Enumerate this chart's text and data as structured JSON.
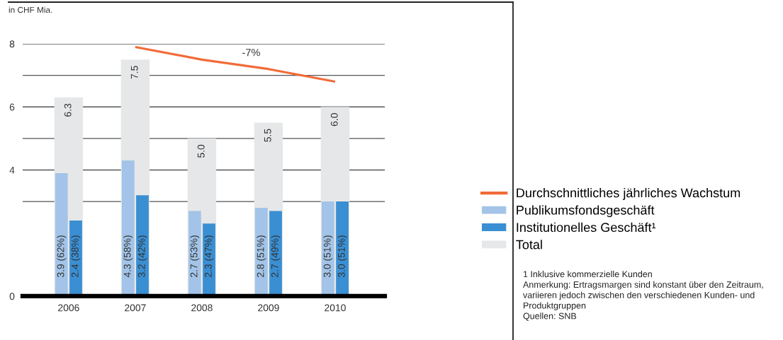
{
  "chart_data": {
    "type": "bar",
    "ylabel": "in CHF Mia.",
    "categories": [
      "2006",
      "2007",
      "2008",
      "2009",
      "2010"
    ],
    "series": [
      {
        "name": "Durchschnittliches jährliches Wachstum",
        "type": "line",
        "color": "#f26b38",
        "values": [
          null,
          7.9,
          7.5,
          7.2,
          6.8
        ]
      },
      {
        "name": "Publikumsfondsgeschäft",
        "color": "#a3c4e8",
        "values": [
          3.9,
          4.3,
          2.7,
          2.8,
          3.0
        ],
        "value_labels": [
          "3.9 (62%)",
          "4.3 (58%)",
          "2.7 (53%)",
          "2.8 (51%)",
          "3.0 (51%)"
        ]
      },
      {
        "name": "Institutionelles Geschäft¹",
        "color": "#3a8fd3",
        "values": [
          2.4,
          3.2,
          2.3,
          2.7,
          3.0
        ],
        "value_labels": [
          "2.4 (38%)",
          "3.2 (42%)",
          "2.3 (47%)",
          "2.7 (49%)",
          "3.0 (51%)"
        ]
      },
      {
        "name": "Total",
        "color": "#e6e7e8",
        "values": [
          6.3,
          7.5,
          5.0,
          5.5,
          6.0
        ],
        "value_labels": [
          "6.3",
          "7.5",
          "5.0",
          "5.5",
          "6.0"
        ]
      }
    ],
    "ylim": [
      0,
      8
    ],
    "yticks": [
      0,
      {
        "value": 3,
        "label": null
      },
      4,
      {
        "value": 5,
        "label": null
      },
      6,
      {
        "value": 7,
        "label": null
      },
      8
    ],
    "grid": "y",
    "legend": "right",
    "marker": "none",
    "annotations": [
      "-7%",
      "1 Inklusive kommerzielle Kunden",
      "Anmerkung: Ertragsmargen sind konstant über den Zeitraum, variieren jedoch zwischen den verschiedenen Kunden- und Produktgruppen",
      "Quellen: SNB"
    ]
  }
}
